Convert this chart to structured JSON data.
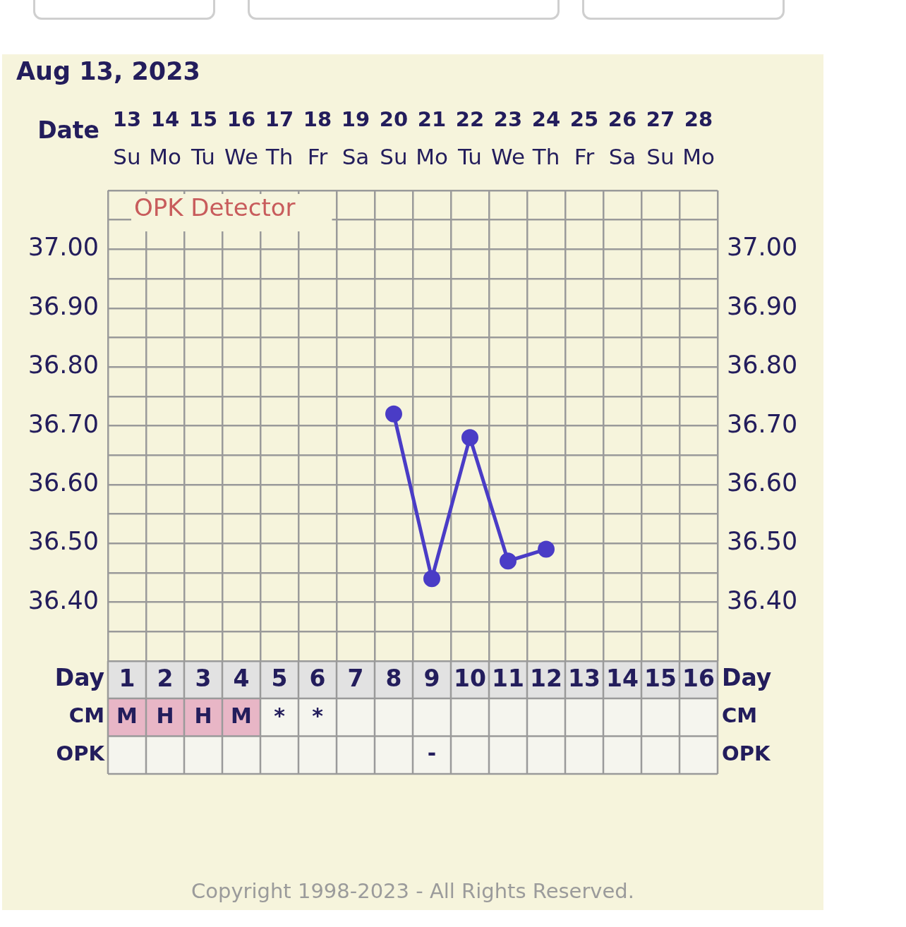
{
  "chart_data": [
    {
      "type": "line",
      "title": "Aug 13, 2023",
      "x2label": "Date",
      "categories": [
        "Su",
        "Mo",
        "Tu",
        "We",
        "Th",
        "Fr",
        "Sa",
        "Su",
        "Mo",
        "Tu",
        "We",
        "Th",
        "Fr",
        "Sa",
        "Su",
        "Mo"
      ],
      "series": [
        {
          "color": "#4a3cc6",
          "values": [
            null,
            null,
            null,
            null,
            null,
            null,
            null,
            36.72,
            36.44,
            36.68,
            36.47,
            36.49,
            null,
            null,
            null,
            null
          ]
        }
      ],
      "x2lim": [
        12.5,
        28.5
      ],
      "x2ticks": [
        13,
        14,
        15,
        16,
        17,
        18,
        19,
        20,
        21,
        22,
        23,
        24,
        25,
        26,
        27,
        28
      ],
      "ylim": [
        36.3,
        37.1
      ],
      "yticks": [
        {
          "value": 36.3,
          "label": null
        },
        {
          "value": 36.35,
          "label": null
        },
        {
          "value": 36.4,
          "label": "36.40"
        },
        {
          "value": 36.45,
          "label": null
        },
        {
          "value": 36.5,
          "label": "36.50"
        },
        {
          "value": 36.55,
          "label": null
        },
        {
          "value": 36.6,
          "label": "36.60"
        },
        {
          "value": 36.65,
          "label": null
        },
        {
          "value": 36.7,
          "label": "36.70"
        },
        {
          "value": 36.75,
          "label": null
        },
        {
          "value": 36.8,
          "label": "36.80"
        },
        {
          "value": 36.85,
          "label": null
        },
        {
          "value": 36.9,
          "label": "36.90"
        },
        {
          "value": 36.95,
          "label": null
        },
        {
          "value": 37.0,
          "label": "37.00"
        },
        {
          "value": 37.05,
          "label": null
        },
        {
          "value": 37.1,
          "label": null
        }
      ],
      "y2lim": [
        36.3,
        37.1
      ],
      "y2ticks": [
        {
          "value": 36.3,
          "label": null
        },
        {
          "value": 36.35,
          "label": null
        },
        {
          "value": 36.4,
          "label": "36.40"
        },
        {
          "value": 36.45,
          "label": null
        },
        {
          "value": 36.5,
          "label": "36.50"
        },
        {
          "value": 36.55,
          "label": null
        },
        {
          "value": 36.6,
          "label": "36.60"
        },
        {
          "value": 36.65,
          "label": null
        },
        {
          "value": 36.7,
          "label": "36.70"
        },
        {
          "value": 36.75,
          "label": null
        },
        {
          "value": 36.8,
          "label": "36.80"
        },
        {
          "value": 36.85,
          "label": null
        },
        {
          "value": 36.9,
          "label": "36.90"
        },
        {
          "value": 36.95,
          "label": null
        },
        {
          "value": 37.0,
          "label": "37.00"
        },
        {
          "value": 37.05,
          "label": null
        },
        {
          "value": 37.1,
          "label": null
        }
      ],
      "grid": true,
      "marker": "circle",
      "line_style": "solid",
      "annotations": [
        "OPK Detector"
      ]
    },
    {
      "type": "heatmap",
      "xlabel": "Day",
      "x": [
        1,
        2,
        3,
        4,
        5,
        6,
        7,
        8,
        9,
        10,
        11,
        12,
        13,
        14,
        15,
        16
      ],
      "xlim": [
        0.5,
        16.5
      ],
      "xticks": [
        1,
        2,
        3,
        4,
        5,
        6,
        7,
        8,
        9,
        10,
        11,
        12,
        13,
        14,
        15,
        16
      ],
      "y_categories": [
        "CM",
        "OPK"
      ],
      "y2_categories": [
        "CM",
        "OPK"
      ],
      "cells": [
        [
          "M",
          "H",
          "H",
          "M",
          "*",
          "*",
          null,
          null,
          null,
          null,
          null,
          null,
          null,
          null,
          null,
          null
        ],
        [
          null,
          null,
          null,
          null,
          null,
          null,
          null,
          null,
          "-",
          null,
          null,
          null,
          null,
          null,
          null,
          null
        ]
      ],
      "grid": true,
      "annotations": [
        "Copyright 1998-2023 - All Rights Reserved."
      ]
    }
  ]
}
